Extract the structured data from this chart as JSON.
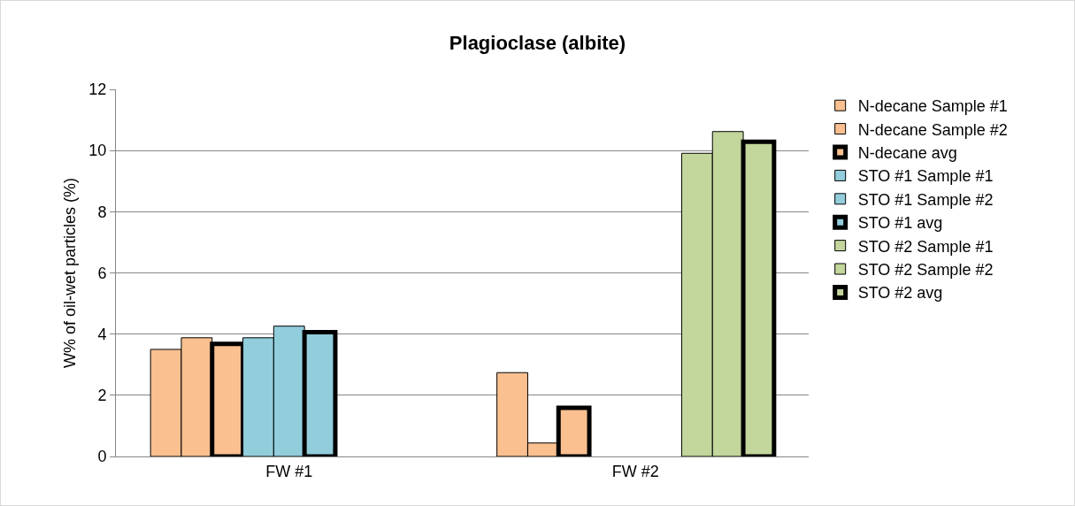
{
  "chart_data": {
    "type": "bar",
    "title": "Plagioclase (albite)",
    "ylabel": "W% of oil-wet particles (%)",
    "categories": [
      "FW #1",
      "FW #2"
    ],
    "series": [
      {
        "name": "N-decane Sample #1",
        "color": "#fac090",
        "values": [
          3.5,
          2.74
        ]
      },
      {
        "name": "N-decane Sample #2",
        "color": "#fac090",
        "values": [
          3.88,
          0.44
        ]
      },
      {
        "name": "N-decane avg",
        "color": "#fac090",
        "values": [
          3.68,
          1.59
        ]
      },
      {
        "name": "STO #1 Sample #1",
        "color": "#92cddc",
        "values": [
          3.88,
          null
        ]
      },
      {
        "name": "STO #1 Sample #2",
        "color": "#92cddc",
        "values": [
          4.26,
          null
        ]
      },
      {
        "name": "STO #1 avg",
        "color": "#92cddc",
        "values": [
          4.06,
          null
        ]
      },
      {
        "name": "STO #2 Sample #1",
        "color": "#c3d69b",
        "values": [
          null,
          9.91
        ]
      },
      {
        "name": "STO #2 Sample #2",
        "color": "#c3d69b",
        "values": [
          null,
          10.62
        ]
      },
      {
        "name": "STO #2 avg",
        "color": "#c3d69b",
        "values": [
          null,
          10.29
        ]
      }
    ],
    "ylim": [
      0,
      12
    ],
    "yticks": [
      0,
      2,
      4,
      6,
      8,
      10,
      12
    ],
    "grid": "y",
    "legend": "right"
  }
}
